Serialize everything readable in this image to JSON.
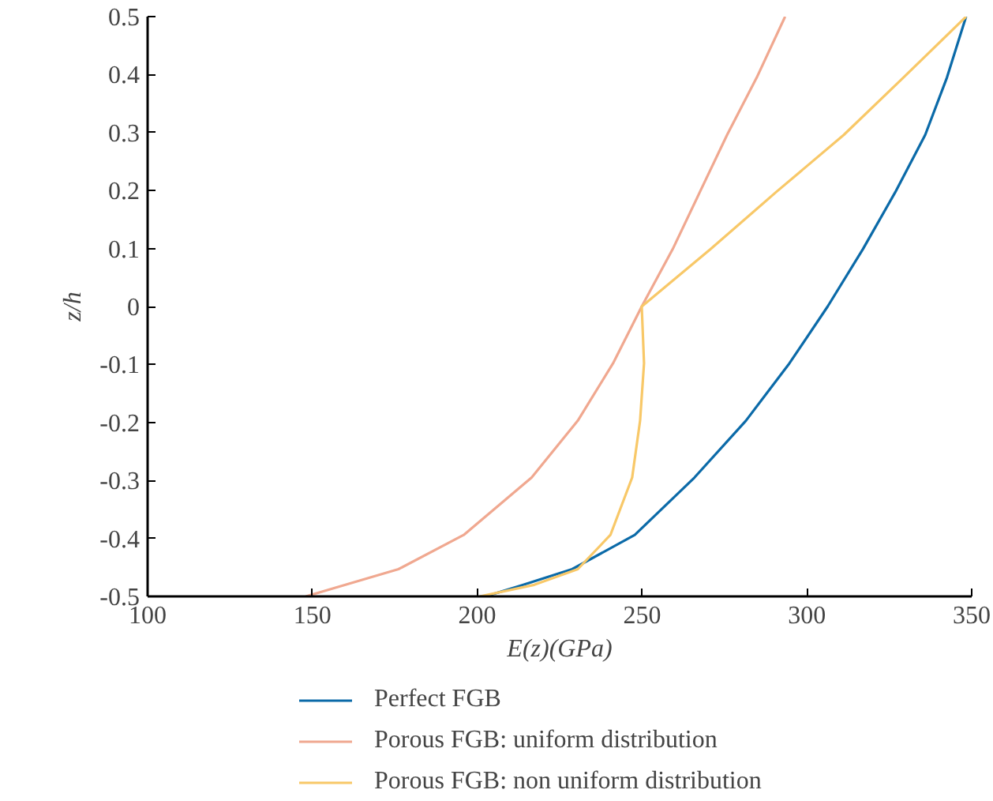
{
  "chart_data": {
    "type": "line",
    "xlabel": "E(z)(GPa)",
    "ylabel": "z/h",
    "xlim": [
      100,
      350
    ],
    "ylim": [
      -0.5,
      0.5
    ],
    "xticks": [
      100,
      150,
      200,
      250,
      300,
      350
    ],
    "yticks": [
      -0.5,
      -0.4,
      -0.3,
      -0.2,
      -0.1,
      0,
      0.1,
      0.2,
      0.3,
      0.4,
      0.5
    ],
    "grid": false,
    "legend": "bottom",
    "line_style": "solid",
    "series": [
      {
        "name": "Perfect FGB",
        "color": "#0b6aa8",
        "x": [
          202.5,
          214,
          228.8,
          247.8,
          265.9,
          281.5,
          294.7,
          306.3,
          317,
          326.8,
          335.9,
          342.5,
          348.3
        ],
        "values": [
          -0.5,
          -0.48,
          -0.453,
          -0.394,
          -0.295,
          -0.197,
          -0.098,
          0,
          0.099,
          0.197,
          0.296,
          0.395,
          0.5
        ]
      },
      {
        "name": "Porous FGB: uniform distribution",
        "color": "#f0a890",
        "x": [
          148,
          176.1,
          195.9,
          216.5,
          230.5,
          241.2,
          249.9,
          259.3,
          267.5,
          275.8,
          284.8,
          293.4
        ],
        "values": [
          -0.5,
          -0.453,
          -0.394,
          -0.295,
          -0.197,
          -0.098,
          0,
          0.099,
          0.197,
          0.296,
          0.395,
          0.5
        ]
      },
      {
        "name": "Porous FGB: non uniform distribution",
        "color": "#f8c868",
        "x": [
          200.8,
          217.3,
          230.5,
          240.4,
          247,
          249.4,
          250.6,
          249.9,
          270.8,
          290.6,
          311.2,
          329.3,
          348.3
        ],
        "values": [
          -0.5,
          -0.48,
          -0.453,
          -0.394,
          -0.295,
          -0.197,
          -0.098,
          0,
          0.099,
          0.197,
          0.296,
          0.395,
          0.5
        ]
      }
    ]
  }
}
